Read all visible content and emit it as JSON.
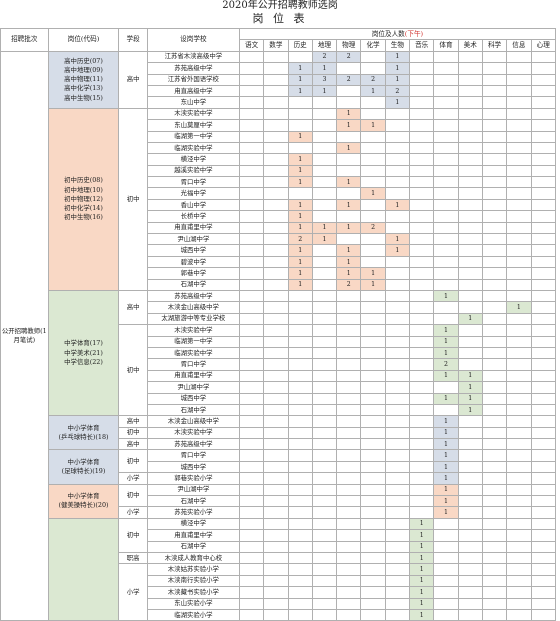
{
  "title": "2020年公开招聘教师选岗",
  "subtitle": "岗 位 表",
  "headers": {
    "batch": "招聘批次",
    "post": "岗位(代码)",
    "stage": "学段",
    "school": "设岗学校",
    "counts_label": "岗位及人数",
    "counts_note": "(下午)",
    "subjects": [
      "语文",
      "数学",
      "历史",
      "地理",
      "物理",
      "化学",
      "生物",
      "音乐",
      "体育",
      "美术",
      "科学",
      "信息",
      "心理"
    ]
  },
  "batch_label": "公开招聘教师(1月笔试)",
  "posts": {
    "p1": [
      "高中历史(07)",
      "高中地理(09)",
      "高中物理(11)",
      "高中化学(13)",
      "高中生物(15)"
    ],
    "p2": [
      "初中历史(08)",
      "初中地理(10)",
      "初中物理(12)",
      "初中化学(14)",
      "初中生物(16)"
    ],
    "p3": [
      "中学体育(17)",
      "中学美术(21)",
      "中学信息(22)"
    ],
    "p4": [
      "中小学体育",
      "(乒乓球特长)(18)"
    ],
    "p5": [
      "中小学体育",
      "(足球特长)(19)"
    ],
    "p6": [
      "中小学体育",
      "(健美操特长)(20)"
    ]
  },
  "stages": {
    "gz": "高中",
    "cz": "初中",
    "xx": "小学",
    "zg": "职高"
  },
  "rows": [
    {
      "school": "江苏省木渎高级中学",
      "c": [
        "",
        "",
        "",
        "2",
        "2",
        "",
        "1",
        "",
        "",
        "",
        "",
        "",
        ""
      ]
    },
    {
      "school": "苏苑高级中学",
      "c": [
        "",
        "",
        "1",
        "1",
        "",
        "",
        "1",
        "",
        "",
        "",
        "",
        "",
        ""
      ]
    },
    {
      "school": "江苏省外国语学校",
      "c": [
        "",
        "",
        "1",
        "3",
        "2",
        "2",
        "1",
        "",
        "",
        "",
        "",
        "",
        ""
      ]
    },
    {
      "school": "甪直高级中学",
      "c": [
        "",
        "",
        "1",
        "1",
        "",
        "1",
        "2",
        "",
        "",
        "",
        "",
        "",
        ""
      ]
    },
    {
      "school": "东山中学",
      "c": [
        "",
        "",
        "",
        "",
        "",
        "",
        "1",
        "",
        "",
        "",
        "",
        "",
        ""
      ]
    },
    {
      "school": "木渎实验中学",
      "c": [
        "",
        "",
        "",
        "",
        "1",
        "",
        "",
        "",
        "",
        "",
        "",
        "",
        ""
      ]
    },
    {
      "school": "东山莫厘中学",
      "c": [
        "",
        "",
        "",
        "",
        "1",
        "1",
        "",
        "",
        "",
        "",
        "",
        "",
        ""
      ]
    },
    {
      "school": "临湖第一中学",
      "c": [
        "",
        "",
        "1",
        "",
        "",
        "",
        "",
        "",
        "",
        "",
        "",
        "",
        ""
      ]
    },
    {
      "school": "临湖实验中学",
      "c": [
        "",
        "",
        "",
        "",
        "1",
        "",
        "",
        "",
        "",
        "",
        "",
        "",
        ""
      ]
    },
    {
      "school": "横泾中学",
      "c": [
        "",
        "",
        "1",
        "",
        "",
        "",
        "",
        "",
        "",
        "",
        "",
        "",
        ""
      ]
    },
    {
      "school": "越溪实验中学",
      "c": [
        "",
        "",
        "1",
        "",
        "",
        "",
        "",
        "",
        "",
        "",
        "",
        "",
        ""
      ]
    },
    {
      "school": "胥口中学",
      "c": [
        "",
        "",
        "1",
        "",
        "1",
        "",
        "",
        "",
        "",
        "",
        "",
        "",
        ""
      ]
    },
    {
      "school": "光福中学",
      "c": [
        "",
        "",
        "",
        "",
        "",
        "1",
        "",
        "",
        "",
        "",
        "",
        "",
        ""
      ]
    },
    {
      "school": "香山中学",
      "c": [
        "",
        "",
        "1",
        "",
        "1",
        "",
        "1",
        "",
        "",
        "",
        "",
        "",
        ""
      ]
    },
    {
      "school": "长桥中学",
      "c": [
        "",
        "",
        "1",
        "",
        "",
        "",
        "",
        "",
        "",
        "",
        "",
        "",
        ""
      ]
    },
    {
      "school": "甪直甫里中学",
      "c": [
        "",
        "",
        "1",
        "1",
        "1",
        "2",
        "",
        "",
        "",
        "",
        "",
        "",
        ""
      ]
    },
    {
      "school": "尹山湖中学",
      "c": [
        "",
        "",
        "2",
        "1",
        "",
        "",
        "1",
        "",
        "",
        "",
        "",
        "",
        ""
      ]
    },
    {
      "school": "城西中学",
      "c": [
        "",
        "",
        "1",
        "",
        "1",
        "",
        "1",
        "",
        "",
        "",
        "",
        "",
        ""
      ]
    },
    {
      "school": "碧波中学",
      "c": [
        "",
        "",
        "1",
        "",
        "1",
        "",
        "",
        "",
        "",
        "",
        "",
        "",
        ""
      ]
    },
    {
      "school": "郭巷中学",
      "c": [
        "",
        "",
        "1",
        "",
        "1",
        "1",
        "",
        "",
        "",
        "",
        "",
        "",
        ""
      ]
    },
    {
      "school": "石湖中学",
      "c": [
        "",
        "",
        "1",
        "",
        "2",
        "1",
        "",
        "",
        "",
        "",
        "",
        "",
        ""
      ]
    },
    {
      "school": "苏苑高级中学",
      "c": [
        "",
        "",
        "",
        "",
        "",
        "",
        "",
        "",
        "1",
        "",
        "",
        "",
        ""
      ]
    },
    {
      "school": "木渎金山高级中学",
      "c": [
        "",
        "",
        "",
        "",
        "",
        "",
        "",
        "",
        "",
        "",
        "",
        "1",
        ""
      ]
    },
    {
      "school": "太湖旅游中等专业学校",
      "c": [
        "",
        "",
        "",
        "",
        "",
        "",
        "",
        "",
        "",
        "1",
        "",
        "",
        ""
      ]
    },
    {
      "school": "木渎实验中学",
      "c": [
        "",
        "",
        "",
        "",
        "",
        "",
        "",
        "",
        "1",
        "",
        "",
        "",
        ""
      ]
    },
    {
      "school": "临湖第一中学",
      "c": [
        "",
        "",
        "",
        "",
        "",
        "",
        "",
        "",
        "1",
        "",
        "",
        "",
        ""
      ]
    },
    {
      "school": "临湖实验中学",
      "c": [
        "",
        "",
        "",
        "",
        "",
        "",
        "",
        "",
        "1",
        "",
        "",
        "",
        ""
      ]
    },
    {
      "school": "胥口中学",
      "c": [
        "",
        "",
        "",
        "",
        "",
        "",
        "",
        "",
        "2",
        "",
        "",
        "",
        ""
      ]
    },
    {
      "school": "甪直甫里中学",
      "c": [
        "",
        "",
        "",
        "",
        "",
        "",
        "",
        "",
        "1",
        "1",
        "",
        "",
        ""
      ]
    },
    {
      "school": "尹山湖中学",
      "c": [
        "",
        "",
        "",
        "",
        "",
        "",
        "",
        "",
        "",
        "1",
        "",
        "",
        ""
      ]
    },
    {
      "school": "城西中学",
      "c": [
        "",
        "",
        "",
        "",
        "",
        "",
        "",
        "",
        "1",
        "1",
        "",
        "",
        ""
      ]
    },
    {
      "school": "石湖中学",
      "c": [
        "",
        "",
        "",
        "",
        "",
        "",
        "",
        "",
        "",
        "1",
        "",
        "",
        ""
      ]
    },
    {
      "school": "木渎金山高级中学",
      "c": [
        "",
        "",
        "",
        "",
        "",
        "",
        "",
        "",
        "1",
        "",
        "",
        "",
        ""
      ]
    },
    {
      "school": "木渎实验中学",
      "c": [
        "",
        "",
        "",
        "",
        "",
        "",
        "",
        "",
        "1",
        "",
        "",
        "",
        ""
      ]
    },
    {
      "school": "苏苑高级中学",
      "c": [
        "",
        "",
        "",
        "",
        "",
        "",
        "",
        "",
        "1",
        "",
        "",
        "",
        ""
      ]
    },
    {
      "school": "胥口中学",
      "c": [
        "",
        "",
        "",
        "",
        "",
        "",
        "",
        "",
        "1",
        "",
        "",
        "",
        ""
      ]
    },
    {
      "school": "城西中学",
      "c": [
        "",
        "",
        "",
        "",
        "",
        "",
        "",
        "",
        "1",
        "",
        "",
        "",
        ""
      ]
    },
    {
      "school": "郭巷实验小学",
      "c": [
        "",
        "",
        "",
        "",
        "",
        "",
        "",
        "",
        "1",
        "",
        "",
        "",
        ""
      ]
    },
    {
      "school": "尹山湖中学",
      "c": [
        "",
        "",
        "",
        "",
        "",
        "",
        "",
        "",
        "1",
        "",
        "",
        "",
        ""
      ]
    },
    {
      "school": "石湖中学",
      "c": [
        "",
        "",
        "",
        "",
        "",
        "",
        "",
        "",
        "1",
        "",
        "",
        "",
        ""
      ]
    },
    {
      "school": "苏苑实验小学",
      "c": [
        "",
        "",
        "",
        "",
        "",
        "",
        "",
        "",
        "1",
        "",
        "",
        "",
        ""
      ]
    },
    {
      "school": "横泾中学",
      "c": [
        "",
        "",
        "",
        "",
        "",
        "",
        "",
        "1",
        "",
        "",
        "",
        "",
        ""
      ]
    },
    {
      "school": "甪直甫里中学",
      "c": [
        "",
        "",
        "",
        "",
        "",
        "",
        "",
        "1",
        "",
        "",
        "",
        "",
        ""
      ]
    },
    {
      "school": "石湖中学",
      "c": [
        "",
        "",
        "",
        "",
        "",
        "",
        "",
        "1",
        "",
        "",
        "",
        "",
        ""
      ]
    },
    {
      "school": "木渎成人教育中心校",
      "c": [
        "",
        "",
        "",
        "",
        "",
        "",
        "",
        "1",
        "",
        "",
        "",
        "",
        ""
      ]
    },
    {
      "school": "木渎姑苏实验小学",
      "c": [
        "",
        "",
        "",
        "",
        "",
        "",
        "",
        "1",
        "",
        "",
        "",
        "",
        ""
      ]
    },
    {
      "school": "木渎南行实验小学",
      "c": [
        "",
        "",
        "",
        "",
        "",
        "",
        "",
        "1",
        "",
        "",
        "",
        "",
        ""
      ]
    },
    {
      "school": "木渎藏书实验小学",
      "c": [
        "",
        "",
        "",
        "",
        "",
        "",
        "",
        "1",
        "",
        "",
        "",
        "",
        ""
      ]
    },
    {
      "school": "东山实验小学",
      "c": [
        "",
        "",
        "",
        "",
        "",
        "",
        "",
        "1",
        "",
        "",
        "",
        "",
        ""
      ]
    },
    {
      "school": "临湖实验小学",
      "c": [
        "",
        "",
        "",
        "",
        "",
        "",
        "",
        "1",
        "",
        "",
        "",
        "",
        ""
      ]
    }
  ]
}
